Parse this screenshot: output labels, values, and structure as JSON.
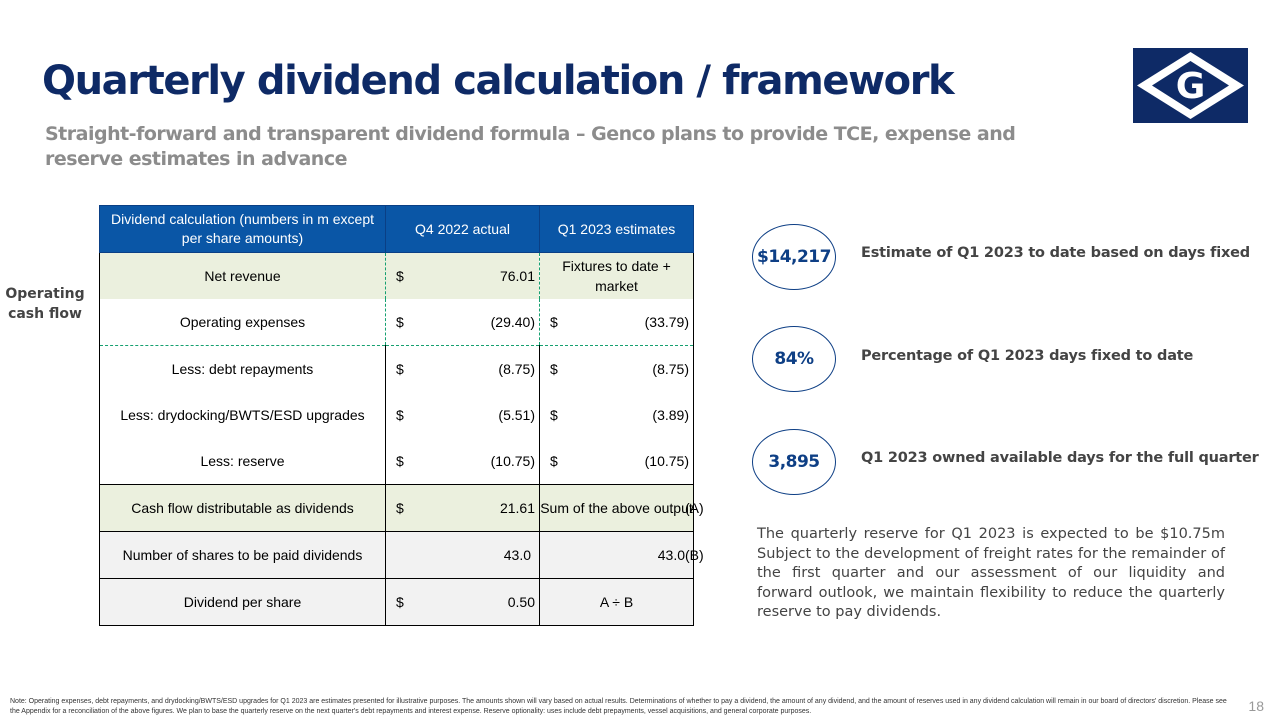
{
  "slide": {
    "title": "Quarterly dividend calculation / framework",
    "subtitle": "Straight-forward and transparent dividend formula – Genco plans to provide TCE, expense and reserve estimates in advance",
    "logo_letter": "G",
    "page_number": "18"
  },
  "side_label": "Operating cash flow",
  "table": {
    "headers": [
      "Dividend calculation (numbers in m except per share amounts)",
      "Q4 2022 actual",
      "Q1 2023 estimates"
    ],
    "rows": [
      {
        "label": "Net revenue",
        "q4_currency": "$",
        "q4_value": "76.01",
        "q1_text": "Fixtures to date + market"
      },
      {
        "label": "Operating expenses",
        "q4_currency": "$",
        "q4_value": "(29.40)",
        "q1_currency": "$",
        "q1_value": "(33.79)"
      },
      {
        "label": "Less: debt repayments",
        "q4_currency": "$",
        "q4_value": "(8.75)",
        "q1_currency": "$",
        "q1_value": "(8.75)"
      },
      {
        "label": "Less: drydocking/BWTS/ESD upgrades",
        "q4_currency": "$",
        "q4_value": "(5.51)",
        "q1_currency": "$",
        "q1_value": "(3.89)"
      },
      {
        "label": "Less: reserve",
        "q4_currency": "$",
        "q4_value": "(10.75)",
        "q1_currency": "$",
        "q1_value": "(10.75)"
      },
      {
        "label": "Cash flow distributable as dividends",
        "q4_currency": "$",
        "q4_value": "21.61",
        "q1_text": "Sum of the above output",
        "tag": "(A)"
      },
      {
        "label": "Number of shares to be paid dividends",
        "q4_value": "43.0",
        "q1_value": "43.0",
        "tag": "(B)"
      },
      {
        "label": "Dividend per share",
        "q4_currency": "$",
        "q4_value": "0.50",
        "q1_text": "A ÷ B"
      }
    ]
  },
  "metrics": [
    {
      "value": "$14,217",
      "description": "Estimate of Q1 2023 to date based on days fixed"
    },
    {
      "value": "84%",
      "description": "Percentage of Q1 2023 days fixed to date"
    },
    {
      "value": "3,895",
      "description": "Q1 2023 owned available days for the full quarter"
    }
  ],
  "reserve_note": "The quarterly reserve for Q1 2023 is expected to be $10.75m Subject to the development of freight rates for the remainder of the first quarter and our assessment of our liquidity and forward outlook, we maintain flexibility to reduce the quarterly reserve to pay dividends.",
  "footnote": "Note: Operating expenses, debt repayments, and drydocking/BWTS/ESD upgrades for Q1 2023 are estimates presented for illustrative purposes.  The amounts shown will vary based on actual results. Determinations of whether to pay a dividend, the amount of any dividend, and the amount of reserves used in any dividend calculation will remain in our board of directors' discretion. Please see the Appendix for a reconciliation of the above figures. We plan to base the quarterly reserve on the next quarter's debt repayments and interest expense. Reserve optionality: uses include debt prepayments, vessel acquisitions, and general corporate purposes.",
  "colors": {
    "title": "#0e2a66",
    "header_fill": "#0a56a6",
    "highlight_fill": "#ebf0de",
    "grey_fill": "#f2f2f2",
    "metric_accent": "#0e3f85"
  }
}
